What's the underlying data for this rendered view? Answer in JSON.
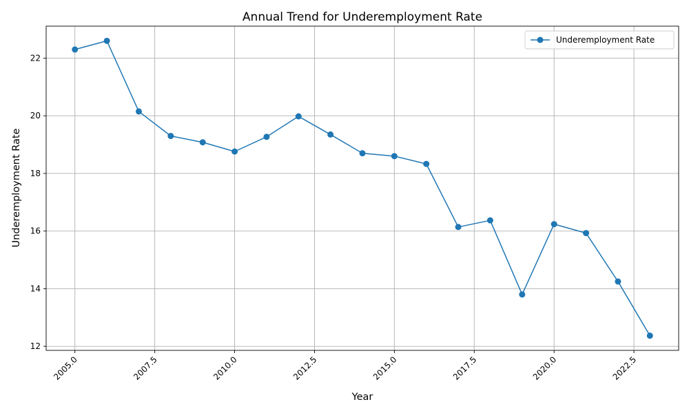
{
  "chart_data": {
    "type": "line",
    "title": "Annual Trend for Underemployment Rate",
    "xlabel": "Year",
    "ylabel": "Underemployment Rate",
    "x": [
      2005,
      2006,
      2007,
      2008,
      2009,
      2010,
      2011,
      2012,
      2013,
      2014,
      2015,
      2016,
      2017,
      2018,
      2019,
      2020,
      2021,
      2022,
      2023
    ],
    "series": [
      {
        "name": "Underemployment Rate",
        "color": "#1f77b4",
        "marker": "circle",
        "values": [
          22.3,
          22.6,
          20.15,
          19.3,
          19.08,
          18.76,
          19.27,
          19.98,
          19.35,
          18.7,
          18.6,
          18.33,
          16.14,
          16.37,
          13.8,
          16.24,
          15.93,
          14.25,
          12.37
        ]
      }
    ],
    "xlim": [
      2004.1,
      2023.9
    ],
    "ylim": [
      11.86,
      23.11
    ],
    "xticks": [
      2005,
      2007.5,
      2010,
      2012.5,
      2015,
      2017.5,
      2020,
      2022.5
    ],
    "xtick_labels": [
      "2005.0",
      "2007.5",
      "2010.0",
      "2012.5",
      "2015.0",
      "2017.5",
      "2020.0",
      "2022.5"
    ],
    "yticks": [
      12,
      14,
      16,
      18,
      20,
      22
    ],
    "ytick_labels": [
      "12",
      "14",
      "16",
      "18",
      "20",
      "22"
    ],
    "xtick_rotation": 45,
    "grid": true,
    "legend": {
      "placement": "top-right"
    }
  }
}
